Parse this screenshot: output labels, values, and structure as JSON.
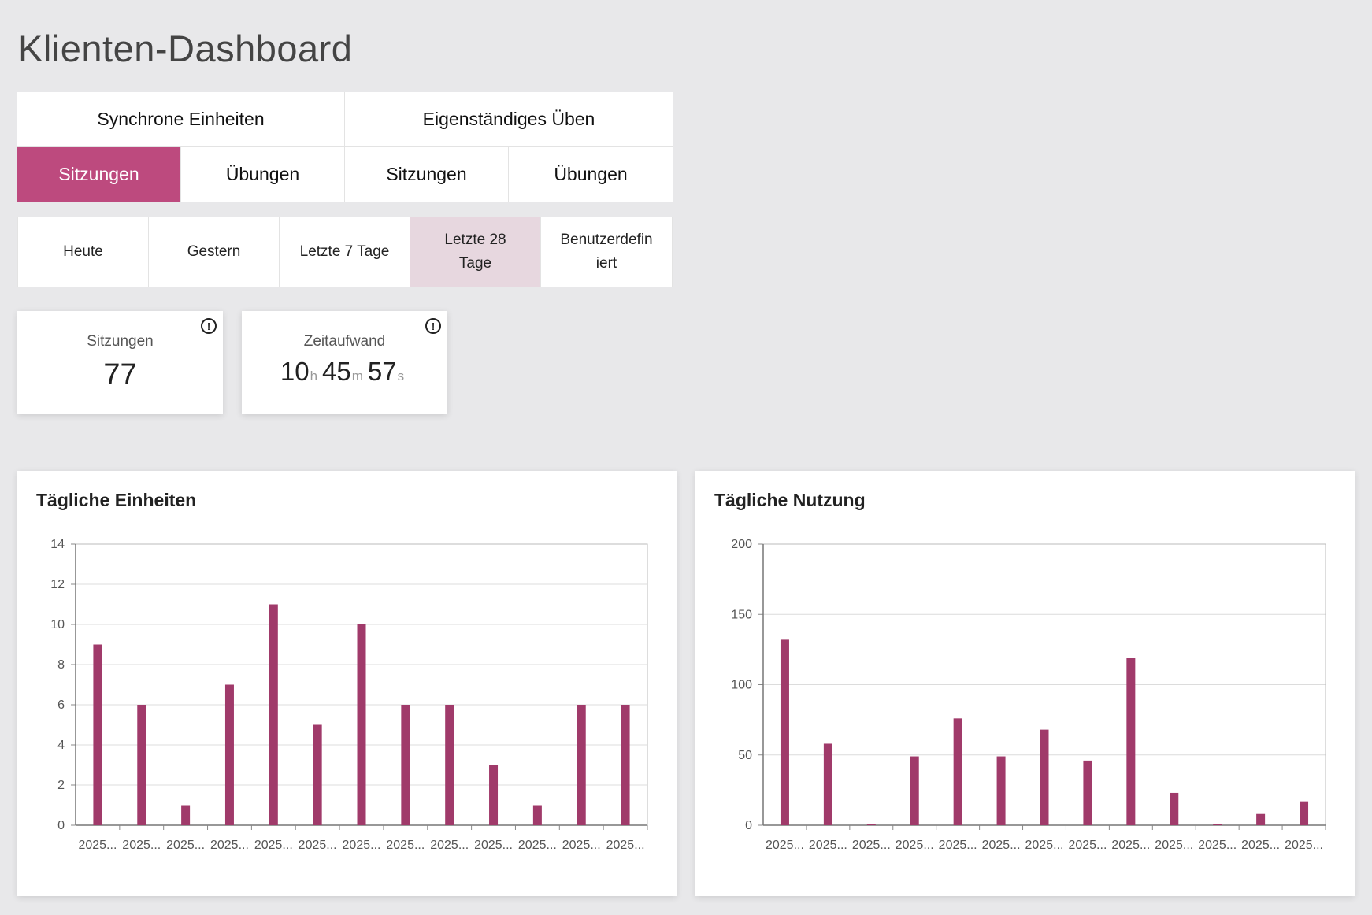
{
  "page_title": "Klienten-Dashboard",
  "tabs": {
    "groups": [
      "Synchrone Einheiten",
      "Eigenständiges Üben"
    ],
    "subtabs": [
      "Sitzungen",
      "Übungen",
      "Sitzungen",
      "Übungen"
    ],
    "active_subtab_index": 0
  },
  "date_range": {
    "options": [
      "Heute",
      "Gestern",
      "Letzte 7 Tage",
      "Letzte 28 Tage",
      "Benutzerdefiniert"
    ],
    "active_index": 3
  },
  "stats": {
    "sessions": {
      "label": "Sitzungen",
      "value": "77"
    },
    "time": {
      "label": "Zeitaufwand",
      "hours": "10",
      "minutes": "45",
      "seconds": "57",
      "h_unit": "h",
      "m_unit": "m",
      "s_unit": "s"
    }
  },
  "colors": {
    "accent": "#bd4a7e",
    "bar": "#a03a6a",
    "active_range": "#e7d7df"
  },
  "chart_data": [
    {
      "type": "bar",
      "title": "Tägliche Einheiten",
      "categories": [
        "2025...",
        "2025...",
        "2025...",
        "2025...",
        "2025...",
        "2025...",
        "2025...",
        "2025...",
        "2025...",
        "2025...",
        "2025...",
        "2025...",
        "2025..."
      ],
      "values": [
        9,
        6,
        1,
        7,
        11,
        5,
        10,
        6,
        6,
        3,
        1,
        6,
        6
      ],
      "ylim": [
        0,
        14
      ],
      "yticks": [
        0,
        2,
        4,
        6,
        8,
        10,
        12,
        14
      ],
      "grid": true
    },
    {
      "type": "bar",
      "title": "Tägliche Nutzung",
      "categories": [
        "2025...",
        "2025...",
        "2025...",
        "2025...",
        "2025...",
        "2025...",
        "2025...",
        "2025...",
        "2025...",
        "2025...",
        "2025...",
        "2025...",
        "2025..."
      ],
      "values": [
        132,
        58,
        1,
        49,
        76,
        49,
        68,
        46,
        119,
        23,
        1,
        8,
        17
      ],
      "ylim": [
        0,
        200
      ],
      "yticks": [
        0,
        50,
        100,
        150,
        200
      ],
      "grid": true
    }
  ]
}
